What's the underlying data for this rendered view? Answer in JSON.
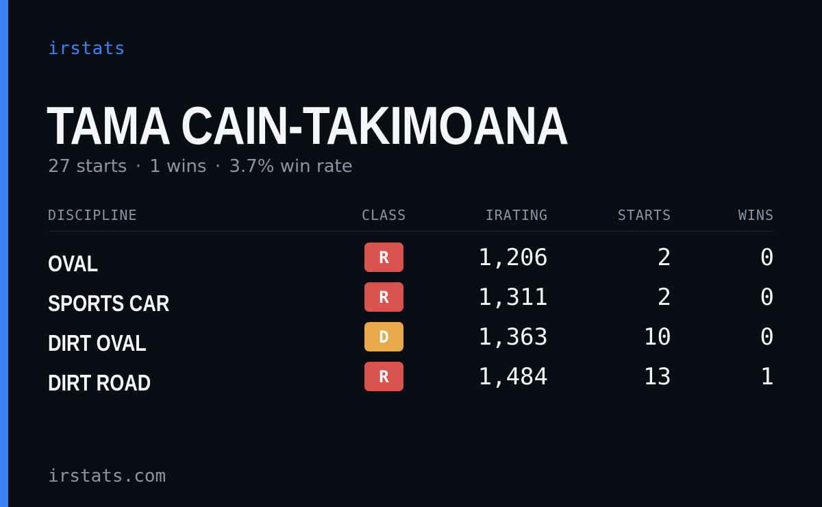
{
  "brand": "irstats",
  "driver": {
    "name": "TAMA CAIN-TAKIMOANA",
    "starts_text": "27 starts",
    "wins_text": "1 wins",
    "win_rate_text": "3.7% win rate",
    "separator": "·"
  },
  "table": {
    "headers": {
      "discipline": "DISCIPLINE",
      "class": "CLASS",
      "irating": "IRATING",
      "starts": "STARTS",
      "wins": "WINS"
    },
    "rows": [
      {
        "discipline": "OVAL",
        "class": "R",
        "irating": "1,206",
        "starts": "2",
        "wins": "0"
      },
      {
        "discipline": "SPORTS CAR",
        "class": "R",
        "irating": "1,311",
        "starts": "2",
        "wins": "0"
      },
      {
        "discipline": "DIRT OVAL",
        "class": "D",
        "irating": "1,363",
        "starts": "10",
        "wins": "0"
      },
      {
        "discipline": "DIRT ROAD",
        "class": "R",
        "irating": "1,484",
        "starts": "13",
        "wins": "1"
      }
    ]
  },
  "class_colors": {
    "R": "#d9534f",
    "D": "#e8a94a"
  },
  "colors": {
    "accent": "#3b82f6",
    "background": "#0a0d14",
    "muted": "#8b95a6"
  },
  "footer": "irstats.com"
}
